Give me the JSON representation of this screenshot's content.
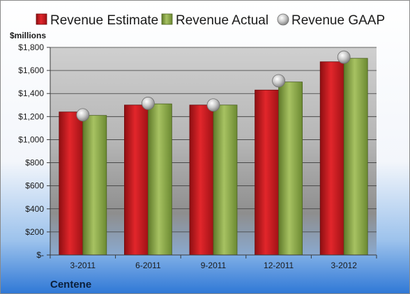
{
  "chart_data": {
    "type": "bar",
    "company": "Centene",
    "unit_label": "$millions",
    "categories": [
      "3-2011",
      "6-2011",
      "9-2011",
      "12-2011",
      "3-2012"
    ],
    "series": [
      {
        "name": "Revenue Estimate",
        "kind": "bar",
        "color": "#c0181c",
        "values": [
          1240,
          1300,
          1300,
          1430,
          1675
        ]
      },
      {
        "name": "Revenue Actual",
        "kind": "bar",
        "color": "#8fa84a",
        "values": [
          1210,
          1310,
          1300,
          1500,
          1705
        ]
      },
      {
        "name": "Revenue GAAP",
        "kind": "marker",
        "color": "#b8b8b8",
        "values": [
          1215,
          1315,
          1300,
          1510,
          1715
        ]
      }
    ],
    "ylim": [
      0,
      1800
    ],
    "ytick_values": [
      0,
      200,
      400,
      600,
      800,
      1000,
      1200,
      1400,
      1600,
      1800
    ],
    "ytick_labels": [
      "$-",
      "$200",
      "$400",
      "$600",
      "$800",
      "$1,000",
      "$1,200",
      "$1,400",
      "$1,600",
      "$1,800"
    ],
    "grid": true,
    "legend_position": "top"
  }
}
